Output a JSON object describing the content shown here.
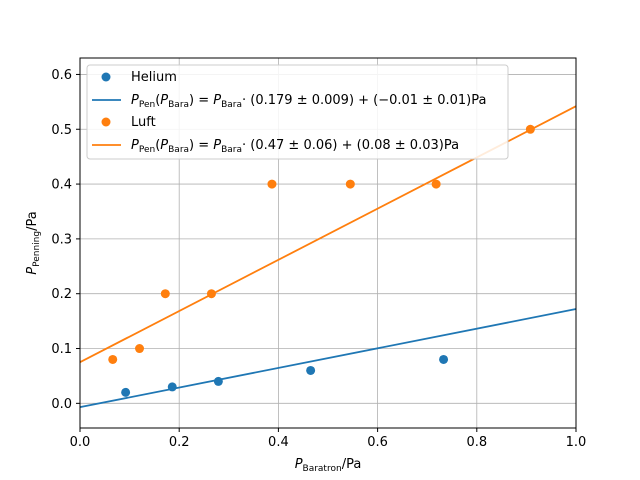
{
  "chart_data": {
    "type": "scatter",
    "xlabel_main": "P",
    "xlabel_sub": "Baratron",
    "xlabel_unit": "/Pa",
    "ylabel_main": "P",
    "ylabel_sub": "Penning",
    "ylabel_unit": "/Pa",
    "xlim": [
      0.0,
      1.0
    ],
    "ylim": [
      -0.045,
      0.63
    ],
    "xticks": [
      0.0,
      0.2,
      0.4,
      0.6,
      0.8,
      1.0
    ],
    "xtick_labels": [
      "0.0",
      "0.2",
      "0.4",
      "0.6",
      "0.8",
      "1.0"
    ],
    "yticks": [
      0.0,
      0.1,
      0.2,
      0.3,
      0.4,
      0.5,
      0.6
    ],
    "ytick_labels": [
      "0.0",
      "0.1",
      "0.2",
      "0.3",
      "0.4",
      "0.5",
      "0.6"
    ],
    "grid": true,
    "legend_position": "top-left",
    "series": [
      {
        "name": "Helium",
        "kind": "scatter",
        "color": "#1f77b4",
        "x": [
          0.092,
          0.186,
          0.279,
          0.465,
          0.733
        ],
        "y": [
          0.02,
          0.03,
          0.04,
          0.06,
          0.08
        ]
      },
      {
        "name": "Luft",
        "kind": "scatter",
        "color": "#ff7f0e",
        "x": [
          0.066,
          0.12,
          0.172,
          0.265,
          0.387,
          0.545,
          0.718,
          0.908
        ],
        "y": [
          0.08,
          0.1,
          0.2,
          0.2,
          0.4,
          0.4,
          0.4,
          0.5
        ]
      },
      {
        "kind": "line",
        "color": "#1f77b4",
        "slope": 0.179,
        "intercept": -0.007,
        "legend": {
          "p": "P",
          "pen": "Pen",
          "bara": "Bara",
          "rest": "· (0.179 ± 0.009) + (−0.01 ± 0.01)Pa"
        }
      },
      {
        "kind": "line",
        "color": "#ff7f0e",
        "slope": 0.467,
        "intercept": 0.075,
        "legend": {
          "p": "P",
          "pen": "Pen",
          "bara": "Bara",
          "rest": "· (0.47 ± 0.06) + (0.08 ± 0.03)Pa"
        }
      }
    ]
  }
}
